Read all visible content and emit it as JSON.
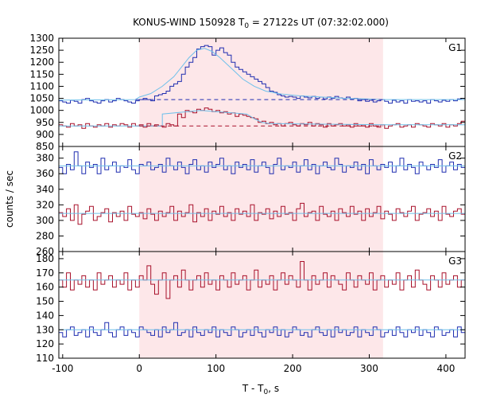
{
  "chart_data": {
    "type": "line",
    "title_prefix": "KONUS-WIND 150928 T",
    "title_sub": "0",
    "title_suffix": " = 27122s UT (07:32:02.000)",
    "xlabel_prefix": "T - T",
    "xlabel_sub": "0",
    "xlabel_suffix": ", s",
    "ylabel": "counts / sec",
    "xlim": [
      -105,
      425
    ],
    "xticks": [
      -100,
      0,
      100,
      200,
      300,
      400
    ],
    "highlight_interval": [
      0,
      318
    ],
    "colors": {
      "blue": "#1f2db0",
      "red": "#a8102a",
      "model": "#6ec0ea",
      "highlight": "#fde7e9"
    },
    "step": 5,
    "panels": [
      {
        "label": "G1",
        "ylim": [
          850,
          1300
        ],
        "yticks": [
          850,
          900,
          950,
          1000,
          1050,
          1100,
          1150,
          1200,
          1250,
          1300
        ],
        "series": [
          {
            "color": "blue",
            "start": -105,
            "values": [
              1040,
              1035,
              1030,
              1042,
              1038,
              1030,
              1045,
              1050,
              1040,
              1035,
              1030,
              1040,
              1045,
              1035,
              1040,
              1050,
              1045,
              1040,
              1035,
              1030,
              1040,
              1045,
              1050,
              1045,
              1040,
              1060,
              1065,
              1070,
              1080,
              1100,
              1110,
              1120,
              1150,
              1180,
              1200,
              1220,
              1255,
              1265,
              1270,
              1265,
              1230,
              1250,
              1260,
              1240,
              1230,
              1200,
              1180,
              1170,
              1160,
              1150,
              1140,
              1130,
              1120,
              1110,
              1095,
              1080,
              1075,
              1065,
              1060,
              1055,
              1058,
              1055,
              1050,
              1060,
              1055,
              1052,
              1058,
              1050,
              1055,
              1048,
              1055,
              1050,
              1058,
              1052,
              1050,
              1055,
              1048,
              1050,
              1040,
              1045,
              1038,
              1042,
              1035,
              1040,
              1045,
              1038,
              1030,
              1042,
              1035,
              1040,
              1030,
              1045,
              1038,
              1040,
              1035,
              1040,
              1030,
              1045,
              1040,
              1035,
              1042,
              1038,
              1045,
              1040,
              1048,
              1050
            ]
          },
          {
            "color": "red",
            "start": -105,
            "values": [
              940,
              935,
              930,
              945,
              935,
              940,
              925,
              945,
              935,
              930,
              940,
              935,
              945,
              930,
              940,
              935,
              945,
              940,
              930,
              945,
              935,
              940,
              930,
              945,
              935,
              940,
              935,
              930,
              945,
              940,
              935,
              985,
              970,
              1000,
              995,
              990,
              1005,
              1000,
              1010,
              1005,
              995,
              1000,
              990,
              995,
              985,
              990,
              975,
              985,
              980,
              975,
              970,
              965,
              950,
              955,
              945,
              950,
              940,
              945,
              935,
              945,
              950,
              940,
              935,
              945,
              940,
              950,
              935,
              945,
              940,
              930,
              945,
              935,
              940,
              945,
              935,
              940,
              930,
              945,
              935,
              940,
              930,
              945,
              935,
              930,
              940,
              925,
              935,
              940,
              945,
              930,
              935,
              940,
              930,
              945,
              940,
              935,
              930,
              945,
              940,
              935,
              945,
              930,
              940,
              935,
              945,
              955
            ]
          },
          {
            "color": "model",
            "points": [
              [
                -105,
                1043
              ],
              [
                -5,
                1045
              ],
              [
                0,
                1055
              ],
              [
                15,
                1070
              ],
              [
                30,
                1100
              ],
              [
                45,
                1140
              ],
              [
                55,
                1180
              ],
              [
                65,
                1220
              ],
              [
                75,
                1250
              ],
              [
                85,
                1258
              ],
              [
                95,
                1245
              ],
              [
                105,
                1220
              ],
              [
                115,
                1190
              ],
              [
                125,
                1160
              ],
              [
                135,
                1130
              ],
              [
                150,
                1100
              ],
              [
                165,
                1080
              ],
              [
                185,
                1068
              ],
              [
                210,
                1060
              ],
              [
                240,
                1055
              ],
              [
                270,
                1050
              ],
              [
                295,
                1048
              ],
              [
                318,
                1045
              ],
              [
                425,
                1045
              ]
            ]
          },
          {
            "color": "model",
            "points": [
              [
                -105,
                935
              ],
              [
                30,
                935
              ],
              [
                30,
                985
              ],
              [
                80,
                1000
              ],
              [
                140,
                985
              ],
              [
                150,
                965
              ],
              [
                160,
                950
              ],
              [
                170,
                945
              ],
              [
                318,
                940
              ],
              [
                425,
                940
              ]
            ]
          },
          {
            "color": "blue",
            "dashed": true,
            "points": [
              [
                -5,
                1045
              ],
              [
                318,
                1045
              ]
            ]
          },
          {
            "color": "red",
            "dashed": true,
            "points": [
              [
                0,
                935
              ],
              [
                318,
                935
              ]
            ]
          }
        ]
      },
      {
        "label": "G2",
        "ylim": [
          260,
          395
        ],
        "yticks": [
          260,
          280,
          300,
          320,
          340,
          360,
          380
        ],
        "series": [
          {
            "color": "blue",
            "start": -105,
            "values": [
              368,
              360,
              372,
              365,
              388,
              370,
              360,
              375,
              368,
              372,
              360,
              380,
              365,
              370,
              375,
              362,
              370,
              368,
              378,
              365,
              360,
              372,
              370,
              375,
              365,
              368,
              372,
              362,
              380,
              370,
              365,
              375,
              368,
              360,
              372,
              378,
              365,
              370,
              362,
              375,
              368,
              372,
              380,
              365,
              370,
              360,
              375,
              368,
              372,
              365,
              378,
              362,
              370,
              375,
              368,
              360,
              372,
              380,
              365,
              370,
              368,
              375,
              362,
              370,
              378,
              365,
              372,
              360,
              370,
              375,
              368,
              365,
              380,
              372,
              362,
              370,
              368,
              375,
              365,
              372,
              360,
              378,
              370,
              365,
              372,
              368,
              375,
              362,
              370,
              380,
              365,
              372,
              368,
              360,
              375,
              370,
              365,
              372,
              368,
              378,
              362,
              370,
              375,
              365,
              372,
              368,
              370
            ]
          },
          {
            "color": "red",
            "start": -105,
            "values": [
              310,
              305,
              315,
              300,
              320,
              295,
              308,
              312,
              318,
              300,
              305,
              310,
              315,
              298,
              310,
              305,
              312,
              300,
              318,
              308,
              305,
              310,
              302,
              315,
              308,
              300,
              312,
              305,
              310,
              318,
              300,
              312,
              305,
              310,
              320,
              298,
              310,
              305,
              315,
              300,
              312,
              308,
              318,
              305,
              310,
              300,
              315,
              308,
              312,
              305,
              320,
              300,
              310,
              308,
              315,
              302,
              312,
              305,
              318,
              308,
              310,
              300,
              315,
              322,
              305,
              310,
              312,
              300,
              318,
              308,
              305,
              312,
              300,
              315,
              310,
              305,
              318,
              308,
              312,
              300,
              315,
              305,
              310,
              318,
              302,
              312,
              308,
              300,
              315,
              310,
              305,
              312,
              318,
              300,
              308,
              310,
              315,
              305,
              312,
              300,
              318,
              308,
              305,
              312,
              315,
              308,
              310
            ]
          },
          {
            "color": "model",
            "points": [
              [
                -105,
                370
              ],
              [
                425,
                370
              ]
            ]
          },
          {
            "color": "model",
            "points": [
              [
                -105,
                309
              ],
              [
                425,
                309
              ]
            ]
          }
        ]
      },
      {
        "label": "G3",
        "ylim": [
          110,
          185
        ],
        "yticks": [
          110,
          120,
          130,
          140,
          150,
          160,
          170,
          180
        ],
        "series": [
          {
            "color": "red",
            "start": -105,
            "values": [
              165,
              160,
              170,
              158,
              165,
              162,
              168,
              160,
              165,
              158,
              170,
              162,
              165,
              168,
              160,
              165,
              162,
              170,
              158,
              165,
              160,
              168,
              165,
              175,
              162,
              155,
              165,
              170,
              152,
              165,
              168,
              160,
              172,
              165,
              158,
              165,
              168,
              160,
              170,
              162,
              165,
              158,
              168,
              165,
              160,
              170,
              162,
              165,
              168,
              158,
              165,
              172,
              160,
              165,
              162,
              168,
              158,
              165,
              170,
              162,
              168,
              165,
              160,
              178,
              165,
              158,
              168,
              162,
              165,
              170,
              160,
              168,
              165,
              162,
              158,
              170,
              165,
              160,
              168,
              165,
              162,
              170,
              158,
              165,
              168,
              160,
              165,
              162,
              170,
              158,
              165,
              168,
              160,
              172,
              165,
              162,
              158,
              168,
              165,
              160,
              170,
              162,
              165,
              168,
              160,
              165,
              162
            ]
          },
          {
            "color": "blue",
            "start": -105,
            "values": [
              128,
              125,
              130,
              132,
              126,
              128,
              130,
              125,
              132,
              128,
              126,
              130,
              135,
              128,
              125,
              130,
              132,
              126,
              130,
              128,
              125,
              132,
              130,
              128,
              126,
              130,
              125,
              132,
              128,
              130,
              135,
              126,
              128,
              130,
              125,
              132,
              128,
              126,
              130,
              128,
              132,
              125,
              130,
              128,
              126,
              132,
              130,
              125,
              128,
              130,
              126,
              132,
              128,
              125,
              130,
              128,
              132,
              126,
              130,
              125,
              128,
              132,
              130,
              126,
              128,
              125,
              130,
              132,
              128,
              126,
              130,
              125,
              132,
              128,
              130,
              126,
              128,
              132,
              125,
              130,
              128,
              126,
              132,
              130,
              125,
              128,
              130,
              126,
              132,
              128,
              125,
              130,
              128,
              132,
              126,
              130,
              128,
              125,
              132,
              130,
              126,
              128,
              130,
              125,
              132,
              128,
              130
            ]
          },
          {
            "color": "model",
            "points": [
              [
                -105,
                165
              ],
              [
                425,
                165
              ]
            ]
          },
          {
            "color": "model",
            "points": [
              [
                -105,
                130
              ],
              [
                425,
                130
              ]
            ]
          }
        ]
      }
    ]
  }
}
